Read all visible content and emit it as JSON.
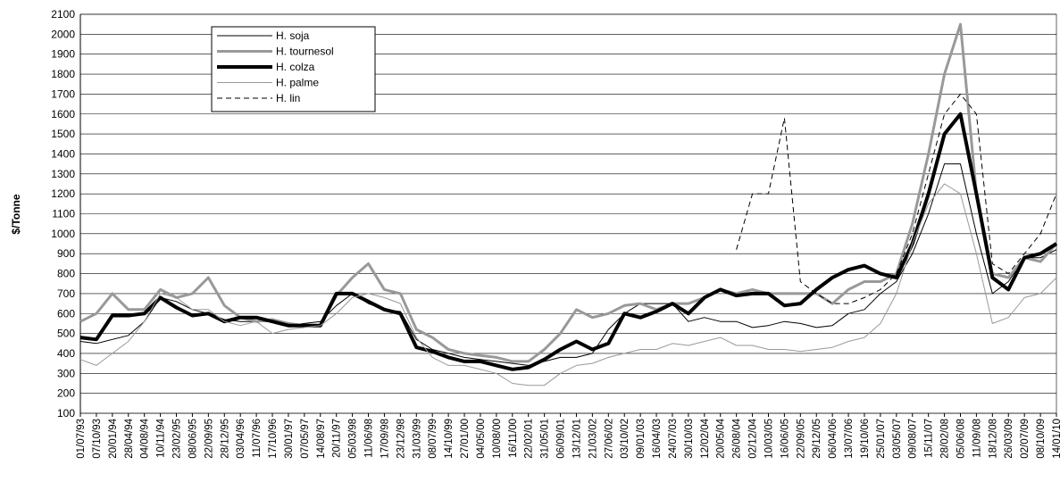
{
  "chart_data": {
    "type": "line",
    "y_label": "$/Tonne",
    "categories": [
      "01/07/93",
      "07/10/93",
      "20/01/94",
      "28/04/94",
      "04/08/94",
      "10/11/94",
      "23/02/95",
      "08/06/95",
      "22/09/95",
      "28/12/95",
      "03/04/96",
      "11/07/96",
      "17/10/96",
      "30/01/97",
      "07/05/97",
      "14/08/97",
      "20/11/97",
      "05/03/98",
      "11/06/98",
      "17/09/98",
      "23/12/98",
      "31/03/99",
      "08/07/99",
      "14/10/99",
      "27/01/00",
      "04/05/00",
      "10/08/00",
      "16/11/00",
      "22/02/01",
      "31/05/01",
      "06/09/01",
      "13/12/01",
      "21/03/02",
      "27/06/02",
      "03/10/02",
      "09/01/03",
      "16/04/03",
      "24/07/03",
      "30/10/03",
      "12/02/04",
      "20/05/04",
      "26/08/04",
      "02/12/04",
      "10/03/05",
      "16/06/05",
      "22/09/05",
      "29/12/05",
      "06/04/06",
      "13/07/06",
      "19/10/06",
      "25/01/07",
      "03/05/07",
      "09/08/07",
      "15/11/07",
      "28/02/08",
      "05/06/08",
      "11/09/08",
      "18/12/08",
      "26/03/09",
      "02/07/09",
      "08/10/09",
      "14/01/10"
    ],
    "series": [
      {
        "name": "H. soja",
        "color": "#000000",
        "width": 1,
        "dash": false,
        "values": [
          460,
          450,
          470,
          490,
          560,
          680,
          660,
          620,
          600,
          570,
          560,
          560,
          560,
          540,
          550,
          560,
          640,
          700,
          650,
          620,
          610,
          470,
          420,
          400,
          380,
          370,
          360,
          350,
          340,
          360,
          380,
          380,
          400,
          520,
          600,
          650,
          650,
          650,
          560,
          580,
          560,
          560,
          530,
          540,
          560,
          550,
          530,
          540,
          600,
          620,
          700,
          760,
          900,
          1100,
          1350,
          1350,
          1000,
          700,
          760,
          880,
          880,
          920
        ]
      },
      {
        "name": "H. tournesol",
        "color": "#999999",
        "width": 3,
        "dash": false,
        "values": [
          560,
          600,
          700,
          620,
          620,
          720,
          680,
          700,
          780,
          640,
          580,
          560,
          570,
          550,
          540,
          540,
          690,
          780,
          850,
          720,
          700,
          520,
          480,
          420,
          400,
          390,
          380,
          360,
          360,
          420,
          500,
          620,
          580,
          600,
          640,
          650,
          620,
          650,
          650,
          680,
          720,
          700,
          720,
          700,
          700,
          700,
          700,
          650,
          720,
          760,
          760,
          800,
          1050,
          1400,
          1800,
          2050,
          1200,
          800,
          780,
          880,
          860,
          950
        ]
      },
      {
        "name": "H. colza",
        "color": "#000000",
        "width": 4,
        "dash": false,
        "values": [
          480,
          470,
          590,
          590,
          600,
          680,
          630,
          590,
          600,
          560,
          580,
          580,
          560,
          540,
          540,
          540,
          700,
          700,
          660,
          620,
          600,
          430,
          410,
          380,
          360,
          360,
          340,
          320,
          330,
          370,
          420,
          460,
          420,
          450,
          600,
          580,
          610,
          650,
          600,
          680,
          720,
          690,
          700,
          700,
          640,
          650,
          720,
          780,
          820,
          840,
          800,
          780,
          950,
          1200,
          1500,
          1600,
          1200,
          780,
          720,
          880,
          900,
          950
        ]
      },
      {
        "name": "H. palme",
        "color": "#999999",
        "width": 1,
        "dash": false,
        "values": [
          370,
          340,
          400,
          460,
          560,
          700,
          680,
          620,
          620,
          560,
          540,
          560,
          500,
          520,
          530,
          540,
          600,
          680,
          700,
          680,
          650,
          480,
          380,
          340,
          340,
          320,
          300,
          250,
          240,
          240,
          300,
          340,
          350,
          380,
          400,
          420,
          420,
          450,
          440,
          460,
          480,
          440,
          440,
          420,
          420,
          410,
          420,
          430,
          460,
          480,
          550,
          700,
          950,
          1150,
          1250,
          1200,
          900,
          550,
          580,
          680,
          700,
          780
        ]
      },
      {
        "name": "H. lin",
        "color": "#000000",
        "width": 1,
        "dash": true,
        "values": [
          null,
          null,
          null,
          null,
          null,
          null,
          null,
          null,
          null,
          null,
          null,
          null,
          null,
          null,
          null,
          null,
          null,
          null,
          null,
          null,
          null,
          null,
          null,
          null,
          null,
          null,
          null,
          null,
          null,
          null,
          null,
          null,
          null,
          null,
          null,
          null,
          null,
          null,
          null,
          null,
          null,
          920,
          1200,
          1200,
          1580,
          760,
          700,
          650,
          650,
          680,
          720,
          800,
          1000,
          1300,
          1600,
          1700,
          1600,
          850,
          800,
          900,
          1000,
          1200
        ]
      }
    ],
    "ylim": [
      100,
      2100
    ],
    "yticks": [
      100,
      200,
      300,
      400,
      500,
      600,
      700,
      800,
      900,
      1000,
      1100,
      1200,
      1300,
      1400,
      1500,
      1600,
      1700,
      1800,
      1900,
      2000,
      2100
    ],
    "grid": true
  }
}
